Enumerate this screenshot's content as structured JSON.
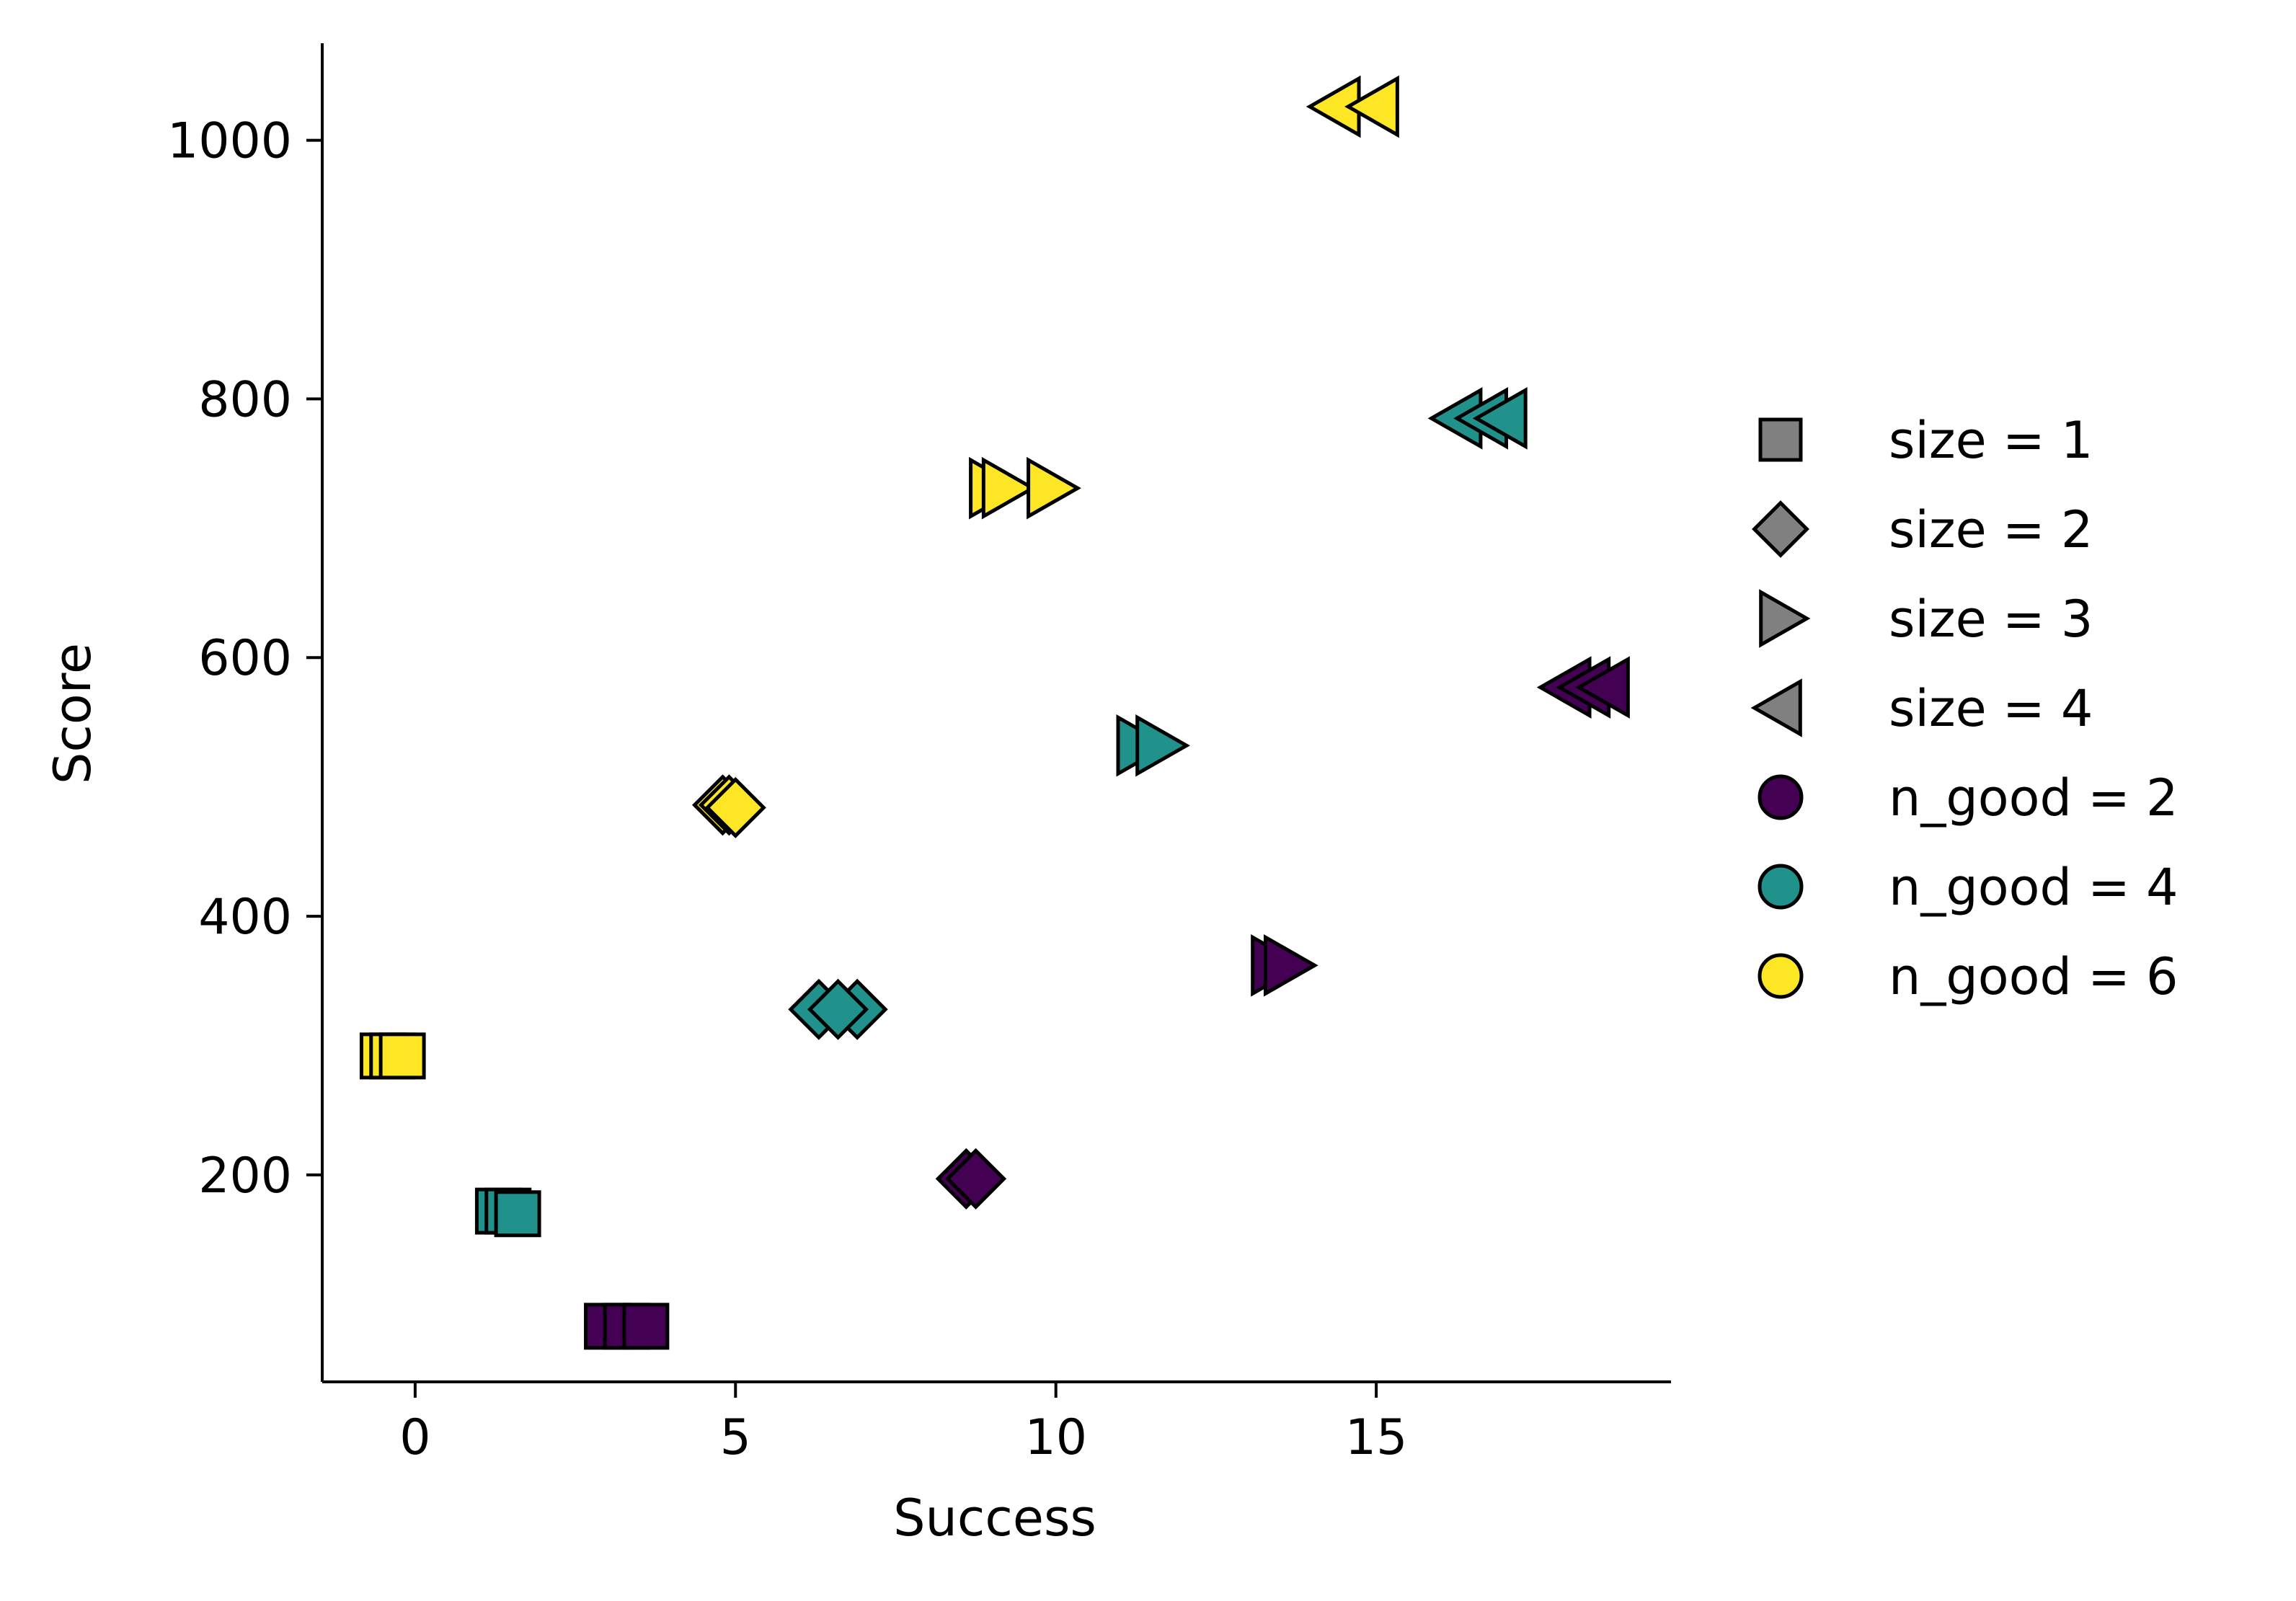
{
  "chart_data": {
    "type": "scatter",
    "xlabel": "Success",
    "ylabel": "Score",
    "xlim": [
      -1.45,
      19.6
    ],
    "ylim": [
      40,
      1075
    ],
    "xticks": [
      0,
      5,
      10,
      15
    ],
    "yticks": [
      200,
      400,
      600,
      800,
      1000
    ],
    "grid": false,
    "legend_placement": "right-outside",
    "colors": {
      "n_good_2": "#440154",
      "n_good_4": "#21918c",
      "n_good_6": "#fde725",
      "legend_gray": "#808080",
      "edge": "#000000"
    },
    "legend": [
      {
        "label": "size = 1",
        "marker": "square"
      },
      {
        "label": "size = 2",
        "marker": "diamond"
      },
      {
        "label": "size = 3",
        "marker": "triangle-right"
      },
      {
        "label": "size = 4",
        "marker": "triangle-left"
      },
      {
        "label": "n_good = 2",
        "marker": "circle",
        "color_key": "n_good_2"
      },
      {
        "label": "n_good = 4",
        "marker": "circle",
        "color_key": "n_good_4"
      },
      {
        "label": "n_good = 6",
        "marker": "circle",
        "color_key": "n_good_6"
      }
    ],
    "points": [
      {
        "x": 3.0,
        "y": 83,
        "size": 1,
        "n_good": 2
      },
      {
        "x": 3.3,
        "y": 83,
        "size": 1,
        "n_good": 2
      },
      {
        "x": 3.6,
        "y": 83,
        "size": 1,
        "n_good": 2
      },
      {
        "x": 8.6,
        "y": 197,
        "size": 2,
        "n_good": 2
      },
      {
        "x": 8.75,
        "y": 197,
        "size": 2,
        "n_good": 2
      },
      {
        "x": 13.4,
        "y": 362,
        "size": 3,
        "n_good": 2
      },
      {
        "x": 13.6,
        "y": 362,
        "size": 3,
        "n_good": 2
      },
      {
        "x": 18.0,
        "y": 577,
        "size": 4,
        "n_good": 2
      },
      {
        "x": 18.3,
        "y": 577,
        "size": 4,
        "n_good": 2
      },
      {
        "x": 18.6,
        "y": 577,
        "size": 4,
        "n_good": 2
      },
      {
        "x": 1.3,
        "y": 172,
        "size": 1,
        "n_good": 4
      },
      {
        "x": 1.45,
        "y": 172,
        "size": 1,
        "n_good": 4
      },
      {
        "x": 1.6,
        "y": 170,
        "size": 1,
        "n_good": 4
      },
      {
        "x": 6.3,
        "y": 328,
        "size": 2,
        "n_good": 4
      },
      {
        "x": 6.9,
        "y": 328,
        "size": 2,
        "n_good": 4
      },
      {
        "x": 6.6,
        "y": 328,
        "size": 2,
        "n_good": 4
      },
      {
        "x": 11.3,
        "y": 532,
        "size": 3,
        "n_good": 4
      },
      {
        "x": 11.6,
        "y": 532,
        "size": 3,
        "n_good": 4
      },
      {
        "x": 16.3,
        "y": 785,
        "size": 4,
        "n_good": 4
      },
      {
        "x": 16.7,
        "y": 785,
        "size": 4,
        "n_good": 4
      },
      {
        "x": 17.0,
        "y": 785,
        "size": 4,
        "n_good": 4
      },
      {
        "x": -0.5,
        "y": 292,
        "size": 1,
        "n_good": 6
      },
      {
        "x": -0.35,
        "y": 292,
        "size": 1,
        "n_good": 6
      },
      {
        "x": -0.2,
        "y": 292,
        "size": 1,
        "n_good": 6
      },
      {
        "x": 4.8,
        "y": 486,
        "size": 2,
        "n_good": 6
      },
      {
        "x": 4.9,
        "y": 486,
        "size": 2,
        "n_good": 6
      },
      {
        "x": 5.0,
        "y": 484,
        "size": 2,
        "n_good": 6
      },
      {
        "x": 9.0,
        "y": 731,
        "size": 3,
        "n_good": 6
      },
      {
        "x": 9.2,
        "y": 731,
        "size": 3,
        "n_good": 6
      },
      {
        "x": 9.9,
        "y": 731,
        "size": 3,
        "n_good": 6
      },
      {
        "x": 14.4,
        "y": 1026,
        "size": 4,
        "n_good": 6
      },
      {
        "x": 15.0,
        "y": 1026,
        "size": 4,
        "n_good": 6
      }
    ]
  }
}
